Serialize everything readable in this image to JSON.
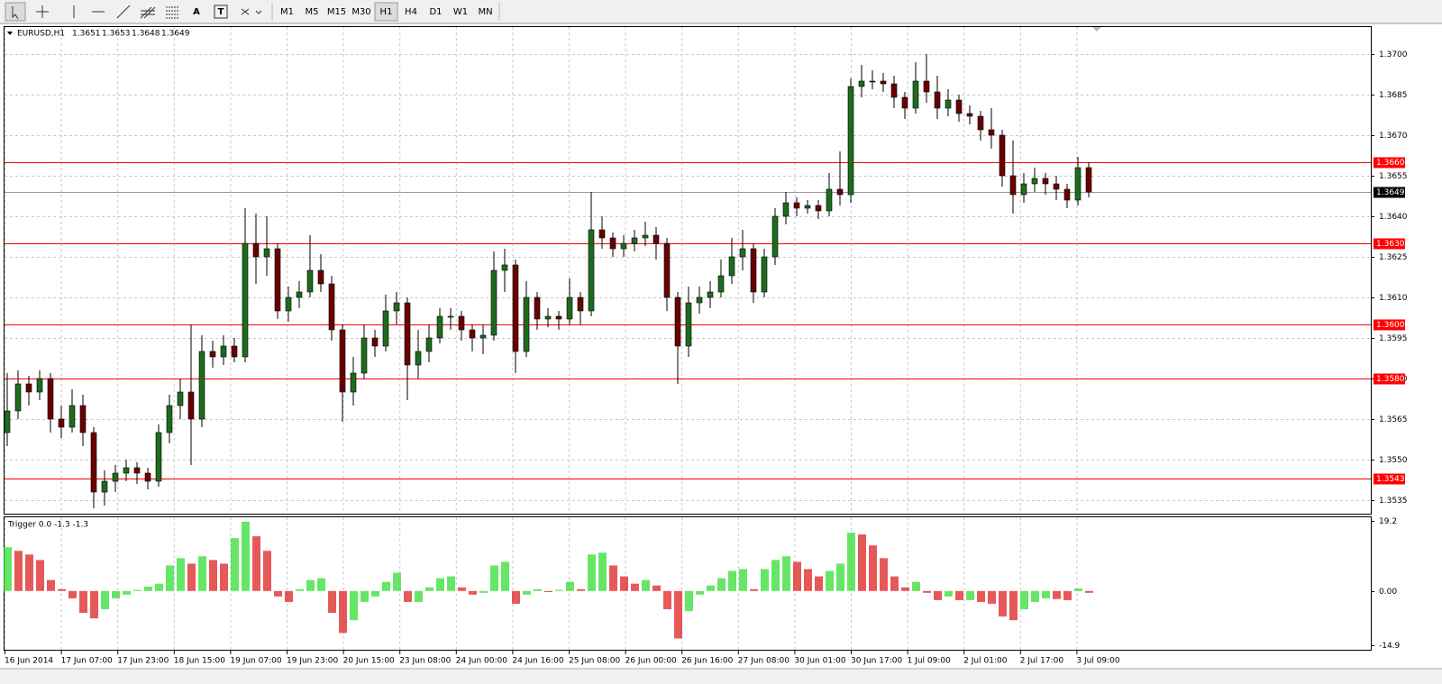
{
  "toolbar": {
    "text_tool": "A",
    "timeframes": [
      "M1",
      "M5",
      "M15",
      "M30",
      "H1",
      "H4",
      "D1",
      "W1",
      "MN"
    ],
    "active": "H1"
  },
  "chart_data": [
    {
      "type": "candlestick",
      "symbol": "EURUSD,H1",
      "quote": [
        "1.3651",
        "1.3653",
        "1.3648",
        "1.3649"
      ],
      "up_color": "#1e6b1e",
      "down_color": "#6b0000",
      "ohlc": [
        [
          1.356,
          1.3582,
          1.3555,
          1.3568
        ],
        [
          1.3568,
          1.3583,
          1.3565,
          1.3578
        ],
        [
          1.3578,
          1.3581,
          1.357,
          1.3575
        ],
        [
          1.3575,
          1.3583,
          1.3572,
          1.358
        ],
        [
          1.358,
          1.3582,
          1.356,
          1.3565
        ],
        [
          1.3565,
          1.357,
          1.3558,
          1.3562
        ],
        [
          1.3562,
          1.3576,
          1.356,
          1.357
        ],
        [
          1.357,
          1.3574,
          1.3555,
          1.356
        ],
        [
          1.356,
          1.3562,
          1.3532,
          1.3538
        ],
        [
          1.3538,
          1.3546,
          1.3533,
          1.3542
        ],
        [
          1.3542,
          1.3548,
          1.3538,
          1.3545
        ],
        [
          1.3545,
          1.355,
          1.3542,
          1.3547
        ],
        [
          1.3547,
          1.3549,
          1.3541,
          1.3545
        ],
        [
          1.3545,
          1.3547,
          1.3539,
          1.3542
        ],
        [
          1.3542,
          1.3563,
          1.354,
          1.356
        ],
        [
          1.356,
          1.3574,
          1.3556,
          1.357
        ],
        [
          1.357,
          1.358,
          1.3565,
          1.3575
        ],
        [
          1.3575,
          1.36,
          1.3548,
          1.3565
        ],
        [
          1.3565,
          1.3596,
          1.3562,
          1.359
        ],
        [
          1.359,
          1.3594,
          1.3584,
          1.3588
        ],
        [
          1.3588,
          1.3596,
          1.3585,
          1.3592
        ],
        [
          1.3592,
          1.3595,
          1.3586,
          1.3588
        ],
        [
          1.3588,
          1.3643,
          1.3586,
          1.363
        ],
        [
          1.363,
          1.3641,
          1.3615,
          1.3625
        ],
        [
          1.3625,
          1.364,
          1.3618,
          1.3628
        ],
        [
          1.3628,
          1.363,
          1.3602,
          1.3605
        ],
        [
          1.3605,
          1.3614,
          1.3601,
          1.361
        ],
        [
          1.361,
          1.3616,
          1.3606,
          1.3612
        ],
        [
          1.3612,
          1.3633,
          1.361,
          1.362
        ],
        [
          1.362,
          1.3626,
          1.3612,
          1.3615
        ],
        [
          1.3615,
          1.3618,
          1.3594,
          1.3598
        ],
        [
          1.3598,
          1.36,
          1.3564,
          1.3575
        ],
        [
          1.3575,
          1.3588,
          1.357,
          1.3582
        ],
        [
          1.3582,
          1.36,
          1.358,
          1.3595
        ],
        [
          1.3595,
          1.3598,
          1.3588,
          1.3592
        ],
        [
          1.3592,
          1.3611,
          1.359,
          1.3605
        ],
        [
          1.3605,
          1.3612,
          1.36,
          1.3608
        ],
        [
          1.3608,
          1.361,
          1.3572,
          1.3585
        ],
        [
          1.3585,
          1.3598,
          1.358,
          1.359
        ],
        [
          1.359,
          1.36,
          1.3586,
          1.3595
        ],
        [
          1.3595,
          1.3606,
          1.3593,
          1.3603
        ],
        [
          1.3603,
          1.3606,
          1.3598,
          1.3603
        ],
        [
          1.3603,
          1.3605,
          1.3594,
          1.3598
        ],
        [
          1.3598,
          1.36,
          1.359,
          1.3595
        ],
        [
          1.3595,
          1.36,
          1.3589,
          1.3596
        ],
        [
          1.3596,
          1.3627,
          1.3594,
          1.362
        ],
        [
          1.362,
          1.3628,
          1.3612,
          1.3622
        ],
        [
          1.3622,
          1.3624,
          1.3582,
          1.359
        ],
        [
          1.359,
          1.3616,
          1.3588,
          1.361
        ],
        [
          1.361,
          1.3612,
          1.3598,
          1.3602
        ],
        [
          1.3602,
          1.3606,
          1.3599,
          1.3603
        ],
        [
          1.3603,
          1.3605,
          1.3598,
          1.3602
        ],
        [
          1.3602,
          1.3617,
          1.36,
          1.361
        ],
        [
          1.361,
          1.3612,
          1.36,
          1.3605
        ],
        [
          1.3605,
          1.3649,
          1.3603,
          1.3635
        ],
        [
          1.3635,
          1.364,
          1.3628,
          1.3632
        ],
        [
          1.3632,
          1.3634,
          1.3625,
          1.3628
        ],
        [
          1.3628,
          1.3633,
          1.3625,
          1.363
        ],
        [
          1.363,
          1.3635,
          1.3627,
          1.3632
        ],
        [
          1.3632,
          1.3638,
          1.3629,
          1.3633
        ],
        [
          1.3633,
          1.3636,
          1.3624,
          1.363
        ],
        [
          1.363,
          1.3632,
          1.3605,
          1.361
        ],
        [
          1.361,
          1.3612,
          1.3578,
          1.3592
        ],
        [
          1.3592,
          1.3614,
          1.3588,
          1.3608
        ],
        [
          1.3608,
          1.3614,
          1.3604,
          1.361
        ],
        [
          1.361,
          1.3616,
          1.3606,
          1.3612
        ],
        [
          1.3612,
          1.3624,
          1.361,
          1.3618
        ],
        [
          1.3618,
          1.3632,
          1.3615,
          1.3625
        ],
        [
          1.3625,
          1.3635,
          1.362,
          1.3628
        ],
        [
          1.3628,
          1.363,
          1.3608,
          1.3612
        ],
        [
          1.3612,
          1.3628,
          1.361,
          1.3625
        ],
        [
          1.3625,
          1.3643,
          1.3622,
          1.364
        ],
        [
          1.364,
          1.3649,
          1.3637,
          1.3645
        ],
        [
          1.3645,
          1.3647,
          1.364,
          1.3643
        ],
        [
          1.3643,
          1.3646,
          1.3641,
          1.3644
        ],
        [
          1.3644,
          1.3646,
          1.3639,
          1.3642
        ],
        [
          1.3642,
          1.3656,
          1.364,
          1.365
        ],
        [
          1.365,
          1.3664,
          1.3644,
          1.3648
        ],
        [
          1.3648,
          1.3691,
          1.3645,
          1.3688
        ],
        [
          1.3688,
          1.3696,
          1.3684,
          1.369
        ],
        [
          1.369,
          1.3694,
          1.3687,
          1.369
        ],
        [
          1.369,
          1.3693,
          1.3686,
          1.3689
        ],
        [
          1.3689,
          1.3692,
          1.368,
          1.3684
        ],
        [
          1.3684,
          1.3686,
          1.3676,
          1.368
        ],
        [
          1.368,
          1.3697,
          1.3678,
          1.369
        ],
        [
          1.369,
          1.37,
          1.3682,
          1.3686
        ],
        [
          1.3686,
          1.3692,
          1.3676,
          1.368
        ],
        [
          1.368,
          1.3687,
          1.3677,
          1.3683
        ],
        [
          1.3683,
          1.3685,
          1.3675,
          1.3678
        ],
        [
          1.3678,
          1.3681,
          1.3674,
          1.3677
        ],
        [
          1.3677,
          1.3679,
          1.3668,
          1.3672
        ],
        [
          1.3672,
          1.368,
          1.3665,
          1.367
        ],
        [
          1.367,
          1.3672,
          1.3651,
          1.3655
        ],
        [
          1.3655,
          1.3668,
          1.3641,
          1.3648
        ],
        [
          1.3648,
          1.3656,
          1.3645,
          1.3652
        ],
        [
          1.3652,
          1.3658,
          1.3649,
          1.3654
        ],
        [
          1.3654,
          1.3656,
          1.3648,
          1.3652
        ],
        [
          1.3652,
          1.3655,
          1.3646,
          1.365
        ],
        [
          1.365,
          1.3652,
          1.3643,
          1.3646
        ],
        [
          1.3646,
          1.3662,
          1.3644,
          1.3658
        ],
        [
          1.3658,
          1.366,
          1.3647,
          1.3649
        ]
      ],
      "ylim": [
        1.353,
        1.371
      ],
      "yticks": [
        1.3535,
        {
          "value": 1.355,
          "label": "1.3550"
        },
        1.3565,
        {
          "value": 1.358,
          "label": "1.3580"
        },
        1.3595,
        {
          "value": 1.361,
          "label": "1.3610"
        },
        1.3625,
        {
          "value": 1.364,
          "label": "1.3640"
        },
        1.3655,
        {
          "value": 1.367,
          "label": "1.3670"
        },
        1.3685,
        {
          "value": 1.37,
          "label": "1.3700"
        }
      ],
      "hlines": [
        {
          "value": 1.366,
          "label": "1.3660"
        },
        {
          "value": 1.363,
          "label": "1.3630"
        },
        {
          "value": 1.36,
          "label": "1.3600"
        },
        {
          "value": 1.358,
          "label": "1.3580"
        },
        {
          "value": 1.3543,
          "label": "1.3543"
        }
      ],
      "hline_color": "#ff0000",
      "last_price": {
        "value": 1.3649,
        "label": "1.3649"
      },
      "grid": true,
      "time_labels": [
        "16 Jun 2014",
        "17 Jun 07:00",
        "17 Jun 23:00",
        "18 Jun 15:00",
        "19 Jun 07:00",
        "19 Jun 23:00",
        "20 Jun 15:00",
        "23 Jun 08:00",
        "24 Jun 00:00",
        "24 Jun 16:00",
        "25 Jun 08:00",
        "26 Jun 00:00",
        "26 Jun 16:00",
        "27 Jun 08:00",
        "30 Jun 01:00",
        "30 Jun 17:00",
        "1 Jul 09:00",
        "2 Jul 01:00",
        "2 Jul 17:00",
        "3 Jul 09:00"
      ]
    },
    {
      "type": "histogram",
      "title": "Trigger 0.0 -1.3 -1.3",
      "up_color": "#33dd33",
      "down_color": "#dd2222",
      "values": [
        12,
        11,
        10,
        8.5,
        3,
        0.5,
        -2,
        -6,
        -7.5,
        -5,
        -2,
        -1,
        0.3,
        1.2,
        2,
        7,
        9,
        7.5,
        9.5,
        8.5,
        7.5,
        14.5,
        19,
        15,
        11,
        -1.5,
        -3,
        0.5,
        3,
        3.5,
        -6,
        -11.5,
        -8,
        -3,
        -1.5,
        2.5,
        5,
        -3,
        -3,
        1,
        3.5,
        4,
        1,
        -1,
        -0.5,
        7,
        8,
        -3.5,
        -1,
        0.5,
        -0.3,
        0.3,
        2.5,
        0.5,
        10,
        10.5,
        7,
        4,
        2,
        3,
        1.5,
        -5,
        -13,
        -5.5,
        -1,
        1.5,
        3.5,
        5.5,
        6,
        0.5,
        6,
        8.5,
        9.5,
        8,
        6,
        4,
        5.5,
        7.5,
        16,
        15.5,
        12.5,
        9,
        4,
        1,
        2.5,
        -0.5,
        -2.5,
        -1.5,
        -2.5,
        -2.5,
        -3,
        -3.5,
        -7,
        -8,
        -5,
        -3,
        -2,
        -2.2,
        -2.5,
        0.7,
        -0.5
      ],
      "ylim": [
        -16.1,
        20.2
      ],
      "yticks": [
        19.2,
        {
          "value": 0,
          "label": "0.00"
        },
        -14.9
      ]
    }
  ]
}
